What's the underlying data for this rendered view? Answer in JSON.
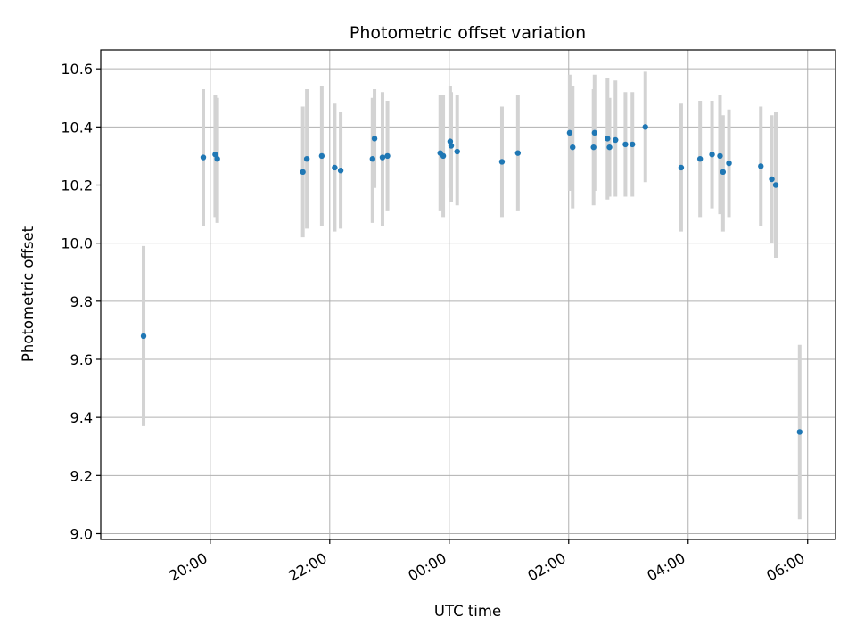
{
  "chart_data": {
    "type": "scatter",
    "title": "Photometric offset variation",
    "xlabel": "UTC time",
    "ylabel": "Photometric offset",
    "ylim": [
      8.98,
      10.665
    ],
    "yticks": [
      "9.0",
      "9.2",
      "9.4",
      "9.6",
      "9.8",
      "10.0",
      "10.2",
      "10.4",
      "10.6"
    ],
    "xlim": [
      "18:10",
      "06:28"
    ],
    "xticks": [
      "20:00",
      "22:00",
      "00:00",
      "02:00",
      "04:00",
      "06:00"
    ],
    "grid": true,
    "marker_color": "#1f77b4",
    "errorbar_color": "#d3d3d3",
    "points": [
      {
        "t": "18:53",
        "y": 9.68,
        "lo": 9.37,
        "hi": 9.99
      },
      {
        "t": "19:53",
        "y": 10.295,
        "lo": 10.06,
        "hi": 10.53
      },
      {
        "t": "20:05",
        "y": 10.305,
        "lo": 10.09,
        "hi": 10.51
      },
      {
        "t": "20:07",
        "y": 10.29,
        "lo": 10.07,
        "hi": 10.5
      },
      {
        "t": "21:33",
        "y": 10.245,
        "lo": 10.02,
        "hi": 10.47
      },
      {
        "t": "21:37",
        "y": 10.29,
        "lo": 10.05,
        "hi": 10.53
      },
      {
        "t": "21:52",
        "y": 10.3,
        "lo": 10.06,
        "hi": 10.54
      },
      {
        "t": "22:05",
        "y": 10.26,
        "lo": 10.04,
        "hi": 10.48
      },
      {
        "t": "22:11",
        "y": 10.25,
        "lo": 10.05,
        "hi": 10.45
      },
      {
        "t": "22:43",
        "y": 10.29,
        "lo": 10.07,
        "hi": 10.5
      },
      {
        "t": "22:45",
        "y": 10.36,
        "lo": 10.19,
        "hi": 10.53
      },
      {
        "t": "22:53",
        "y": 10.295,
        "lo": 10.06,
        "hi": 10.52
      },
      {
        "t": "22:58",
        "y": 10.3,
        "lo": 10.11,
        "hi": 10.49
      },
      {
        "t": "23:51",
        "y": 10.31,
        "lo": 10.11,
        "hi": 10.51
      },
      {
        "t": "23:54",
        "y": 10.3,
        "lo": 10.09,
        "hi": 10.51
      },
      {
        "t": "00:01",
        "y": 10.35,
        "lo": 10.19,
        "hi": 10.54
      },
      {
        "t": "00:02",
        "y": 10.335,
        "lo": 10.14,
        "hi": 10.52
      },
      {
        "t": "00:08",
        "y": 10.315,
        "lo": 10.13,
        "hi": 10.51
      },
      {
        "t": "00:53",
        "y": 10.28,
        "lo": 10.09,
        "hi": 10.47
      },
      {
        "t": "01:09",
        "y": 10.31,
        "lo": 10.11,
        "hi": 10.51
      },
      {
        "t": "02:01",
        "y": 10.38,
        "lo": 10.18,
        "hi": 10.58
      },
      {
        "t": "02:04",
        "y": 10.33,
        "lo": 10.12,
        "hi": 10.54
      },
      {
        "t": "02:25",
        "y": 10.33,
        "lo": 10.13,
        "hi": 10.53
      },
      {
        "t": "02:26",
        "y": 10.38,
        "lo": 10.18,
        "hi": 10.58
      },
      {
        "t": "02:39",
        "y": 10.36,
        "lo": 10.15,
        "hi": 10.57
      },
      {
        "t": "02:41",
        "y": 10.33,
        "lo": 10.16,
        "hi": 10.5
      },
      {
        "t": "02:47",
        "y": 10.355,
        "lo": 10.16,
        "hi": 10.56
      },
      {
        "t": "02:57",
        "y": 10.34,
        "lo": 10.16,
        "hi": 10.52
      },
      {
        "t": "03:04",
        "y": 10.34,
        "lo": 10.16,
        "hi": 10.52
      },
      {
        "t": "03:17",
        "y": 10.4,
        "lo": 10.21,
        "hi": 10.59
      },
      {
        "t": "03:53",
        "y": 10.26,
        "lo": 10.04,
        "hi": 10.48
      },
      {
        "t": "04:12",
        "y": 10.29,
        "lo": 10.09,
        "hi": 10.49
      },
      {
        "t": "04:24",
        "y": 10.305,
        "lo": 10.12,
        "hi": 10.49
      },
      {
        "t": "04:32",
        "y": 10.3,
        "lo": 10.1,
        "hi": 10.51
      },
      {
        "t": "04:35",
        "y": 10.245,
        "lo": 10.04,
        "hi": 10.44
      },
      {
        "t": "04:41",
        "y": 10.275,
        "lo": 10.09,
        "hi": 10.46
      },
      {
        "t": "05:13",
        "y": 10.265,
        "lo": 10.06,
        "hi": 10.47
      },
      {
        "t": "05:24",
        "y": 10.22,
        "lo": 10.0,
        "hi": 10.44
      },
      {
        "t": "05:28",
        "y": 10.2,
        "lo": 9.95,
        "hi": 10.45
      },
      {
        "t": "05:52",
        "y": 9.35,
        "lo": 9.05,
        "hi": 9.65
      }
    ]
  }
}
